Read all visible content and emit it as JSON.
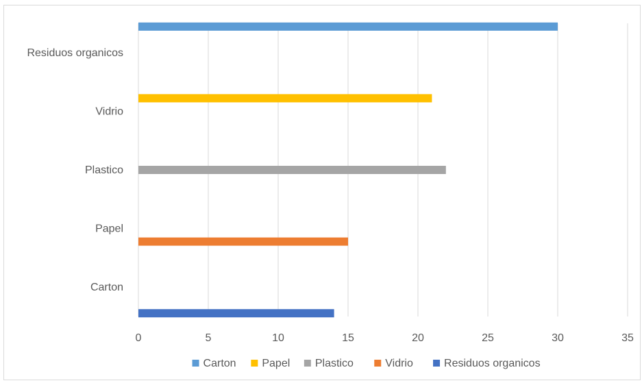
{
  "chart_data": {
    "type": "bar",
    "orientation": "horizontal",
    "categories": [
      "Carton",
      "Papel",
      "Plastico",
      "Vidrio",
      "Residuos organicos"
    ],
    "series": [
      {
        "name": "Carton",
        "category": "Carton",
        "value": 14,
        "color": "#4472C4"
      },
      {
        "name": "Papel",
        "category": "Papel",
        "value": 15,
        "color": "#ED7D31"
      },
      {
        "name": "Plastico",
        "category": "Plastico",
        "value": 22,
        "color": "#A5A5A5"
      },
      {
        "name": "Vidrio",
        "category": "Vidrio",
        "value": 21,
        "color": "#FFC000"
      },
      {
        "name": "Residuos organicos",
        "category": "Residuos organicos",
        "value": 30,
        "color": "#5B9BD5"
      }
    ],
    "legend": [
      {
        "label": "Carton",
        "color": "#5B9BD5"
      },
      {
        "label": "Papel",
        "color": "#FFC000"
      },
      {
        "label": "Plastico",
        "color": "#A5A5A5"
      },
      {
        "label": "Vidrio",
        "color": "#ED7D31"
      },
      {
        "label": "Residuos organicos",
        "color": "#4472C4"
      }
    ],
    "x_ticks": [
      0,
      5,
      10,
      15,
      20,
      25,
      30,
      35
    ],
    "xlim": [
      0,
      35
    ],
    "grid": true,
    "legend_position": "bottom",
    "title": "",
    "xlabel": "",
    "ylabel": ""
  }
}
